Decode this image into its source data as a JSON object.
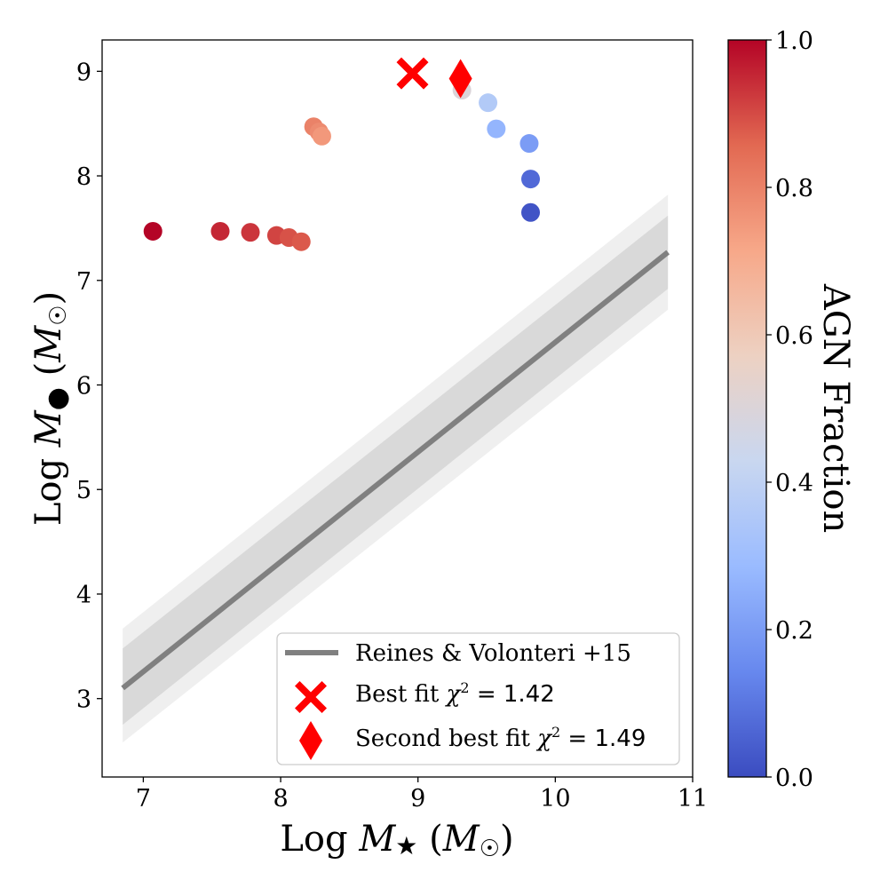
{
  "chart_data": {
    "type": "scatter",
    "xlabel": "Log M★ (M☉)",
    "ylabel": "Log M● (M☉)",
    "xlim": [
      6.7,
      11.0
    ],
    "ylim": [
      2.25,
      9.3
    ],
    "x_ticks": [
      7,
      8,
      9,
      10,
      11
    ],
    "y_ticks": [
      3,
      4,
      5,
      6,
      7,
      8,
      9
    ],
    "x_tick_labels": [
      "7",
      "8",
      "9",
      "10",
      "11"
    ],
    "y_tick_labels": [
      "3",
      "4",
      "5",
      "6",
      "7",
      "8",
      "9"
    ],
    "grid": false,
    "colorbar": {
      "label": "AGN Fraction",
      "range": [
        0.0,
        1.0
      ],
      "ticks": [
        0.0,
        0.2,
        0.4,
        0.6,
        0.8,
        1.0
      ],
      "tick_labels": [
        "0.0",
        "0.2",
        "0.4",
        "0.6",
        "0.8",
        "1.0"
      ],
      "colormap": "coolwarm",
      "colormap_stops": [
        "#3b4cc0",
        "#6788ee",
        "#9abbff",
        "#c9d7f0",
        "#edd1c2",
        "#f7a889",
        "#e26952",
        "#b40426"
      ]
    },
    "points": [
      {
        "x": 7.07,
        "y": 7.47,
        "agn_fraction": 1.0
      },
      {
        "x": 7.56,
        "y": 7.47,
        "agn_fraction": 0.95
      },
      {
        "x": 7.78,
        "y": 7.46,
        "agn_fraction": 0.93
      },
      {
        "x": 7.97,
        "y": 7.43,
        "agn_fraction": 0.91
      },
      {
        "x": 8.06,
        "y": 7.41,
        "agn_fraction": 0.89
      },
      {
        "x": 8.15,
        "y": 7.37,
        "agn_fraction": 0.88
      },
      {
        "x": 8.24,
        "y": 8.47,
        "agn_fraction": 0.8
      },
      {
        "x": 8.28,
        "y": 8.42,
        "agn_fraction": 0.78
      },
      {
        "x": 8.3,
        "y": 8.38,
        "agn_fraction": 0.75
      },
      {
        "x": 9.32,
        "y": 8.82,
        "agn_fraction": 0.5
      },
      {
        "x": 9.51,
        "y": 8.7,
        "agn_fraction": 0.36
      },
      {
        "x": 9.57,
        "y": 8.45,
        "agn_fraction": 0.27
      },
      {
        "x": 9.81,
        "y": 8.31,
        "agn_fraction": 0.2
      },
      {
        "x": 9.82,
        "y": 7.97,
        "agn_fraction": 0.07
      },
      {
        "x": 9.82,
        "y": 7.65,
        "agn_fraction": 0.02
      }
    ],
    "relation": {
      "name": "Reines & Volonteri +15",
      "x": [
        6.85,
        10.82
      ],
      "y": [
        3.1,
        7.27
      ],
      "inner_band": {
        "x": [
          6.85,
          10.82
        ],
        "lower": [
          2.75,
          6.92
        ],
        "upper": [
          3.48,
          7.62
        ]
      },
      "outer_band": {
        "x": [
          6.85,
          10.82
        ],
        "lower": [
          2.58,
          6.72
        ],
        "upper": [
          3.67,
          7.82
        ]
      },
      "color": "#808080"
    },
    "best_fit": {
      "x": 8.96,
      "y": 8.98,
      "marker": "X",
      "color": "#ff0000",
      "label": "Best fit",
      "chi2": "1.42"
    },
    "second_best_fit": {
      "x": 9.31,
      "y": 8.93,
      "marker": "diamond",
      "color": "#ff0000",
      "label": "Second best fit",
      "chi2": "1.49"
    },
    "legend": {
      "location": "lower-right",
      "entries": [
        {
          "label": "Reines & Volonteri +15",
          "marker": "line"
        },
        {
          "label": "Best fit",
          "value": "1.42",
          "marker": "X"
        },
        {
          "label": "Second best fit",
          "value": "1.49",
          "marker": "diamond"
        }
      ]
    }
  }
}
